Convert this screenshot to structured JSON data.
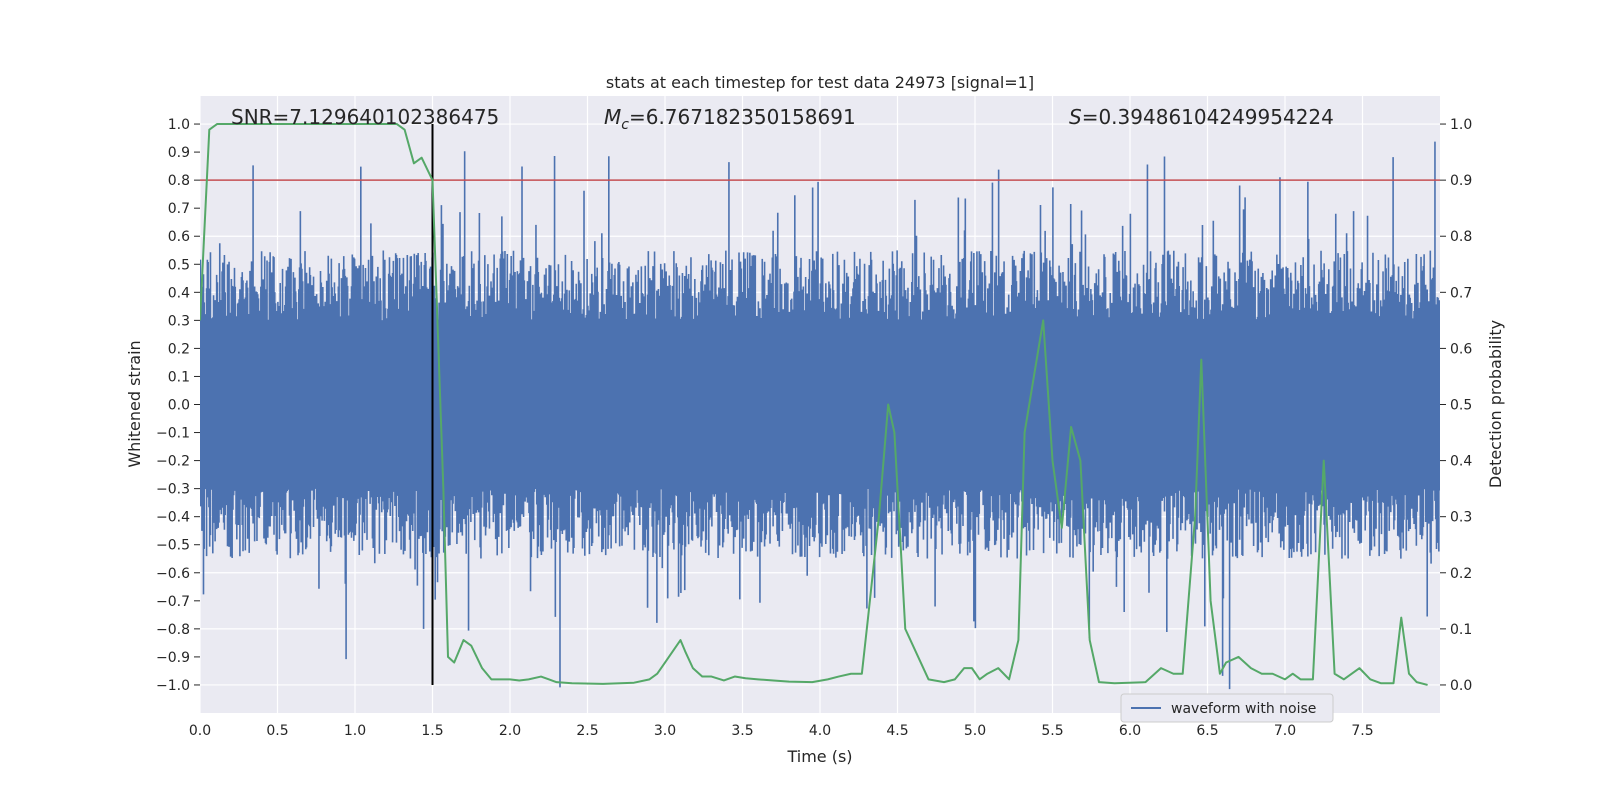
{
  "chart_data": {
    "type": "line",
    "title": "stats at each timestep for test data 24973 [signal=1]",
    "xlabel": "Time (s)",
    "ylabel": "Whitened strain",
    "y2label": "Detection probability",
    "xlim": [
      0.0,
      8.0
    ],
    "ylim": [
      -1.1,
      1.1
    ],
    "y2lim": [
      -0.05,
      1.05
    ],
    "xticks": [
      "0.0",
      "0.5",
      "1.0",
      "1.5",
      "2.0",
      "2.5",
      "3.0",
      "3.5",
      "4.0",
      "4.5",
      "5.0",
      "5.5",
      "6.0",
      "6.5",
      "7.0",
      "7.5"
    ],
    "xtick_values": [
      0.0,
      0.5,
      1.0,
      1.5,
      2.0,
      2.5,
      3.0,
      3.5,
      4.0,
      4.5,
      5.0,
      5.5,
      6.0,
      6.5,
      7.0,
      7.5
    ],
    "yticks": [
      "1.0",
      "0.9",
      "0.8",
      "0.7",
      "0.6",
      "0.5",
      "0.4",
      "0.3",
      "0.2",
      "0.1",
      "0.0",
      "−0.1",
      "−0.2",
      "−0.3",
      "−0.4",
      "−0.5",
      "−0.6",
      "−0.7",
      "−0.8",
      "−0.9",
      "−1.0"
    ],
    "ytick_values": [
      1.0,
      0.9,
      0.8,
      0.7,
      0.6,
      0.5,
      0.4,
      0.3,
      0.2,
      0.1,
      0.0,
      -0.1,
      -0.2,
      -0.3,
      -0.4,
      -0.5,
      -0.6,
      -0.7,
      -0.8,
      -0.9,
      -1.0
    ],
    "y2ticks": [
      "1.0",
      "0.9",
      "0.8",
      "0.7",
      "0.6",
      "0.5",
      "0.4",
      "0.3",
      "0.2",
      "0.1",
      "0.0"
    ],
    "y2tick_values": [
      1.0,
      0.9,
      0.8,
      0.7,
      0.6,
      0.5,
      0.4,
      0.3,
      0.2,
      0.1,
      0.0
    ],
    "annotations": {
      "snr": "SNR=7.129640102386475",
      "mc_symbol": "M",
      "mc_sub": "c",
      "mc_value": "=6.767182350158691",
      "s_symbol": "S",
      "s_value": "=0.39486104249954224"
    },
    "threshold": {
      "value": 0.9,
      "axis": "detection probability",
      "color": "#c44e52"
    },
    "marker_time": {
      "value": 1.5,
      "color": "#000000"
    },
    "legend": {
      "label": "waveform with noise",
      "location": "lower-right",
      "color": "#4c72b0"
    },
    "waveform": {
      "name": "waveform with noise",
      "color": "#4c72b0",
      "seed": 24973,
      "samples": 1600,
      "core_envelope": 0.3,
      "typical_max": 0.55
    },
    "detection_probability": {
      "name": "detection probability",
      "color": "#55a868",
      "x": [
        0.0,
        0.06,
        0.11,
        0.2,
        0.5,
        1.0,
        1.27,
        1.32,
        1.38,
        1.43,
        1.5,
        1.57,
        1.6,
        1.64,
        1.7,
        1.75,
        1.82,
        1.88,
        1.95,
        2.0,
        2.06,
        2.12,
        2.2,
        2.25,
        2.3,
        2.4,
        2.6,
        2.8,
        2.9,
        2.95,
        3.0,
        3.05,
        3.1,
        3.13,
        3.18,
        3.24,
        3.3,
        3.38,
        3.45,
        3.52,
        3.6,
        3.7,
        3.8,
        3.95,
        4.05,
        4.12,
        4.2,
        4.27,
        4.31,
        4.38,
        4.44,
        4.48,
        4.55,
        4.7,
        4.8,
        4.87,
        4.93,
        4.98,
        5.03,
        5.08,
        5.15,
        5.22,
        5.28,
        5.32,
        5.38,
        5.44,
        5.5,
        5.56,
        5.62,
        5.68,
        5.74,
        5.8,
        5.9,
        6.1,
        6.2,
        6.28,
        6.34,
        6.42,
        6.46,
        6.52,
        6.58,
        6.62,
        6.7,
        6.78,
        6.85,
        6.92,
        7.0,
        7.05,
        7.1,
        7.18,
        7.25,
        7.32,
        7.38,
        7.48,
        7.55,
        7.62,
        7.7,
        7.75,
        7.8,
        7.85,
        7.92
      ],
      "y": [
        0.65,
        0.99,
        1.0,
        1.0,
        1.0,
        1.0,
        1.0,
        0.99,
        0.93,
        0.94,
        0.9,
        0.35,
        0.05,
        0.04,
        0.08,
        0.07,
        0.03,
        0.01,
        0.01,
        0.01,
        0.008,
        0.01,
        0.015,
        0.01,
        0.005,
        0.003,
        0.002,
        0.004,
        0.01,
        0.02,
        0.04,
        0.06,
        0.08,
        0.06,
        0.03,
        0.015,
        0.015,
        0.008,
        0.015,
        0.012,
        0.01,
        0.008,
        0.006,
        0.005,
        0.01,
        0.015,
        0.02,
        0.02,
        0.12,
        0.3,
        0.5,
        0.45,
        0.1,
        0.01,
        0.005,
        0.01,
        0.03,
        0.03,
        0.01,
        0.02,
        0.03,
        0.01,
        0.08,
        0.45,
        0.55,
        0.65,
        0.4,
        0.28,
        0.46,
        0.4,
        0.08,
        0.005,
        0.003,
        0.005,
        0.03,
        0.02,
        0.02,
        0.3,
        0.58,
        0.15,
        0.02,
        0.04,
        0.05,
        0.03,
        0.02,
        0.02,
        0.01,
        0.02,
        0.01,
        0.01,
        0.4,
        0.02,
        0.01,
        0.03,
        0.01,
        0.003,
        0.003,
        0.12,
        0.02,
        0.005,
        0.0
      ]
    }
  }
}
